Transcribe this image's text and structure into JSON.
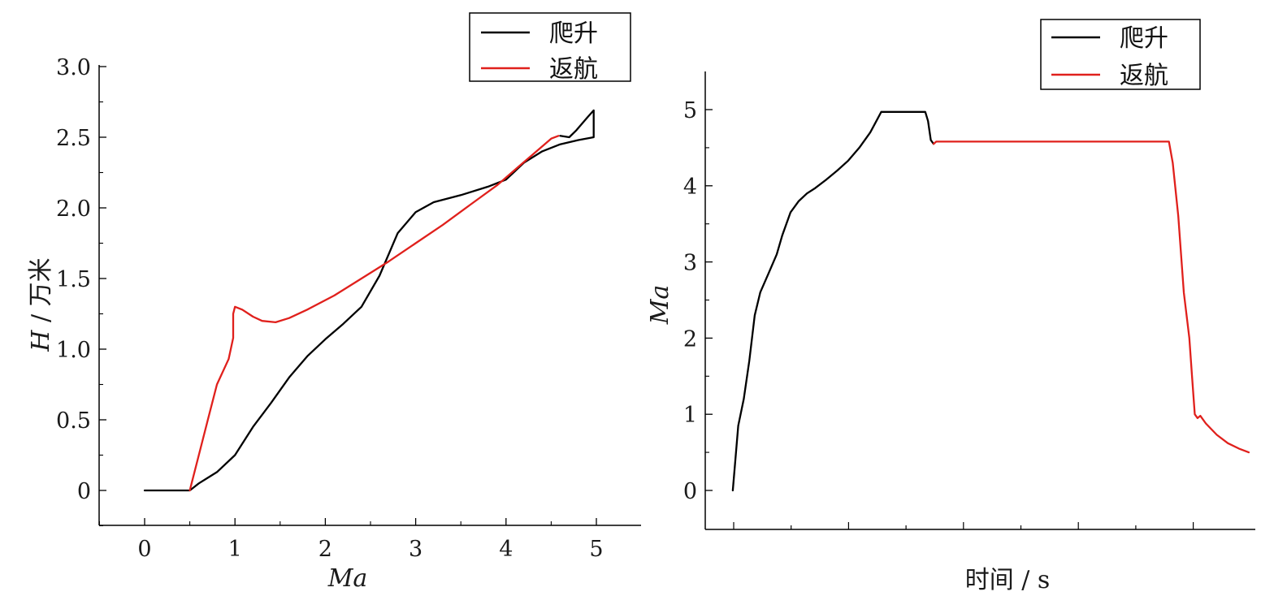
{
  "chart_data": [
    {
      "type": "line",
      "xlabel": "Ma",
      "ylabel_var": "H",
      "ylabel_unit": "万米",
      "xlim": [
        -0.5,
        5.5
      ],
      "ylim": [
        -0.25,
        3.0
      ],
      "xticks": [
        0,
        1,
        2,
        3,
        4,
        5
      ],
      "xtick_labels": [
        "0",
        "1",
        "2",
        "3",
        "4",
        "5"
      ],
      "yticks": [
        0,
        0.5,
        1.0,
        1.5,
        2.0,
        2.5,
        3.0
      ],
      "ytick_labels": [
        "0",
        "0.5",
        "1.0",
        "1.5",
        "2.0",
        "2.5",
        "3.0"
      ],
      "grid": false,
      "legend_position": "top-right",
      "series": [
        {
          "name": "爬升",
          "color": "#000000",
          "points": [
            [
              0,
              0
            ],
            [
              0.5,
              0
            ],
            [
              0.6,
              0.05
            ],
            [
              0.8,
              0.13
            ],
            [
              1.0,
              0.25
            ],
            [
              1.2,
              0.45
            ],
            [
              1.4,
              0.62
            ],
            [
              1.6,
              0.8
            ],
            [
              1.8,
              0.95
            ],
            [
              2.0,
              1.07
            ],
            [
              2.2,
              1.18
            ],
            [
              2.4,
              1.3
            ],
            [
              2.6,
              1.52
            ],
            [
              2.8,
              1.82
            ],
            [
              3.0,
              1.97
            ],
            [
              3.2,
              2.04
            ],
            [
              3.5,
              2.09
            ],
            [
              3.8,
              2.15
            ],
            [
              4.0,
              2.2
            ],
            [
              4.2,
              2.32
            ],
            [
              4.4,
              2.4
            ],
            [
              4.6,
              2.45
            ],
            [
              4.8,
              2.48
            ],
            [
              4.97,
              2.5
            ],
            [
              4.97,
              2.69
            ],
            [
              4.9,
              2.64
            ],
            [
              4.78,
              2.55
            ],
            [
              4.7,
              2.5
            ],
            [
              4.6,
              2.51
            ]
          ]
        },
        {
          "name": "返航",
          "color": "#e0201c",
          "points": [
            [
              4.58,
              2.51
            ],
            [
              4.5,
              2.49
            ],
            [
              4.3,
              2.38
            ],
            [
              4.1,
              2.27
            ],
            [
              3.9,
              2.16
            ],
            [
              3.6,
              2.02
            ],
            [
              3.3,
              1.88
            ],
            [
              3.0,
              1.75
            ],
            [
              2.7,
              1.62
            ],
            [
              2.4,
              1.5
            ],
            [
              2.1,
              1.38
            ],
            [
              1.8,
              1.28
            ],
            [
              1.6,
              1.22
            ],
            [
              1.45,
              1.19
            ],
            [
              1.3,
              1.2
            ],
            [
              1.2,
              1.23
            ],
            [
              1.08,
              1.28
            ],
            [
              1.0,
              1.3
            ],
            [
              0.98,
              1.25
            ],
            [
              0.98,
              1.08
            ],
            [
              0.93,
              0.93
            ],
            [
              0.8,
              0.75
            ],
            [
              0.7,
              0.5
            ],
            [
              0.6,
              0.25
            ],
            [
              0.52,
              0.05
            ],
            [
              0.5,
              0
            ]
          ]
        }
      ]
    },
    {
      "type": "line",
      "xlabel": "时间 / s",
      "ylabel": "Ma",
      "xlim": [
        0,
        1
      ],
      "ylim": [
        -0.5,
        5.5
      ],
      "xticks_count": 9,
      "yticks": [
        0,
        1,
        2,
        3,
        4,
        5
      ],
      "ytick_labels": [
        "0",
        "1",
        "2",
        "3",
        "4",
        "5"
      ],
      "grid": false,
      "legend_position": "top-right",
      "series": [
        {
          "name": "爬升",
          "color": "#000000",
          "points": [
            [
              0.05,
              0
            ],
            [
              0.06,
              0.85
            ],
            [
              0.07,
              1.2
            ],
            [
              0.08,
              1.7
            ],
            [
              0.09,
              2.3
            ],
            [
              0.1,
              2.6
            ],
            [
              0.115,
              2.85
            ],
            [
              0.13,
              3.1
            ],
            [
              0.14,
              3.35
            ],
            [
              0.155,
              3.65
            ],
            [
              0.17,
              3.8
            ],
            [
              0.185,
              3.9
            ],
            [
              0.2,
              3.97
            ],
            [
              0.22,
              4.08
            ],
            [
              0.24,
              4.2
            ],
            [
              0.26,
              4.33
            ],
            [
              0.28,
              4.5
            ],
            [
              0.3,
              4.7
            ],
            [
              0.32,
              4.97
            ],
            [
              0.33,
              4.97
            ],
            [
              0.36,
              4.97
            ],
            [
              0.38,
              4.97
            ],
            [
              0.4,
              4.97
            ],
            [
              0.405,
              4.85
            ],
            [
              0.41,
              4.6
            ],
            [
              0.415,
              4.55
            ]
          ]
        },
        {
          "name": "返航",
          "color": "#e0201c",
          "points": [
            [
              0.415,
              4.55
            ],
            [
              0.42,
              4.58
            ],
            [
              0.5,
              4.58
            ],
            [
              0.6,
              4.58
            ],
            [
              0.7,
              4.58
            ],
            [
              0.8,
              4.58
            ],
            [
              0.843,
              4.58
            ],
            [
              0.85,
              4.3
            ],
            [
              0.86,
              3.6
            ],
            [
              0.87,
              2.6
            ],
            [
              0.88,
              2.0
            ],
            [
              0.885,
              1.5
            ],
            [
              0.89,
              1.0
            ],
            [
              0.895,
              0.95
            ],
            [
              0.9,
              0.98
            ],
            [
              0.91,
              0.88
            ],
            [
              0.93,
              0.73
            ],
            [
              0.95,
              0.62
            ],
            [
              0.97,
              0.55
            ],
            [
              0.988,
              0.5
            ]
          ]
        }
      ]
    }
  ]
}
